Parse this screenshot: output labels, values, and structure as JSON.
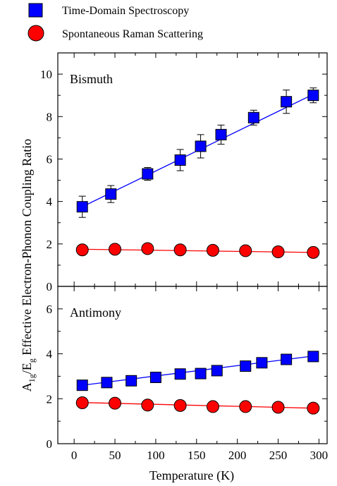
{
  "legend": {
    "placement": "top-left, above plots",
    "entries": [
      {
        "label": "Time-Domain Spectroscopy",
        "marker": "square",
        "color": "#0000ff"
      },
      {
        "label": "Spontaneous Raman Scattering",
        "marker": "circle",
        "color": "#ff0000"
      }
    ]
  },
  "colors": {
    "tds": "#0000ff",
    "raman": "#ff0000",
    "tds_line": "#0000ff",
    "raman_line": "#ff0000"
  },
  "chart_data": [
    {
      "type": "scatter",
      "title": "Bismuth",
      "xlabel": "Temperature (K)",
      "ylabel": "A1g/Eg Effective Electron-Phonon Coupling Ratio",
      "xlim": [
        -20,
        310
      ],
      "ylim": [
        0,
        11
      ],
      "xticks": [
        0,
        50,
        100,
        150,
        200,
        250,
        300
      ],
      "yticks": [
        0,
        2,
        4,
        6,
        8,
        10
      ],
      "grid": false,
      "series": [
        {
          "name": "Time-Domain Spectroscopy",
          "marker": "square",
          "color": "#0000ff",
          "x": [
            10,
            45,
            90,
            130,
            155,
            180,
            220,
            260,
            293
          ],
          "y": [
            3.75,
            4.35,
            5.3,
            5.95,
            6.6,
            7.15,
            7.95,
            8.7,
            9.0
          ],
          "yerr": [
            0.5,
            0.4,
            0.3,
            0.5,
            0.55,
            0.45,
            0.35,
            0.55,
            0.35
          ],
          "fit": {
            "x": [
              10,
              293
            ],
            "y": [
              3.75,
              9.05
            ]
          }
        },
        {
          "name": "Spontaneous Raman Scattering",
          "marker": "circle",
          "color": "#ff0000",
          "x": [
            10,
            50,
            90,
            130,
            170,
            210,
            250,
            293
          ],
          "y": [
            1.72,
            1.75,
            1.78,
            1.72,
            1.7,
            1.68,
            1.63,
            1.6
          ],
          "fit": {
            "x": [
              10,
              293
            ],
            "y": [
              1.75,
              1.6
            ]
          }
        }
      ]
    },
    {
      "type": "scatter",
      "title": "Antimony",
      "xlabel": "Temperature (K)",
      "ylabel": "A1g/Eg Effective Electron-Phonon Coupling Ratio",
      "xlim": [
        -20,
        310
      ],
      "ylim": [
        0,
        7
      ],
      "xticks": [
        0,
        50,
        100,
        150,
        200,
        250,
        300
      ],
      "yticks": [
        0,
        2,
        4,
        6
      ],
      "grid": false,
      "series": [
        {
          "name": "Time-Domain Spectroscopy",
          "marker": "square",
          "color": "#0000ff",
          "x": [
            10,
            40,
            70,
            100,
            130,
            155,
            175,
            210,
            230,
            260,
            293
          ],
          "y": [
            2.6,
            2.72,
            2.8,
            2.95,
            3.1,
            3.12,
            3.25,
            3.45,
            3.6,
            3.75,
            3.88
          ],
          "fit": {
            "x": [
              10,
              293
            ],
            "y": [
              2.6,
              3.9
            ]
          }
        },
        {
          "name": "Spontaneous Raman Scattering",
          "marker": "circle",
          "color": "#ff0000",
          "x": [
            10,
            50,
            90,
            130,
            170,
            210,
            250,
            293
          ],
          "y": [
            1.82,
            1.8,
            1.72,
            1.7,
            1.65,
            1.65,
            1.62,
            1.58
          ],
          "fit": {
            "x": [
              10,
              293
            ],
            "y": [
              1.83,
              1.58
            ]
          }
        }
      ]
    }
  ]
}
